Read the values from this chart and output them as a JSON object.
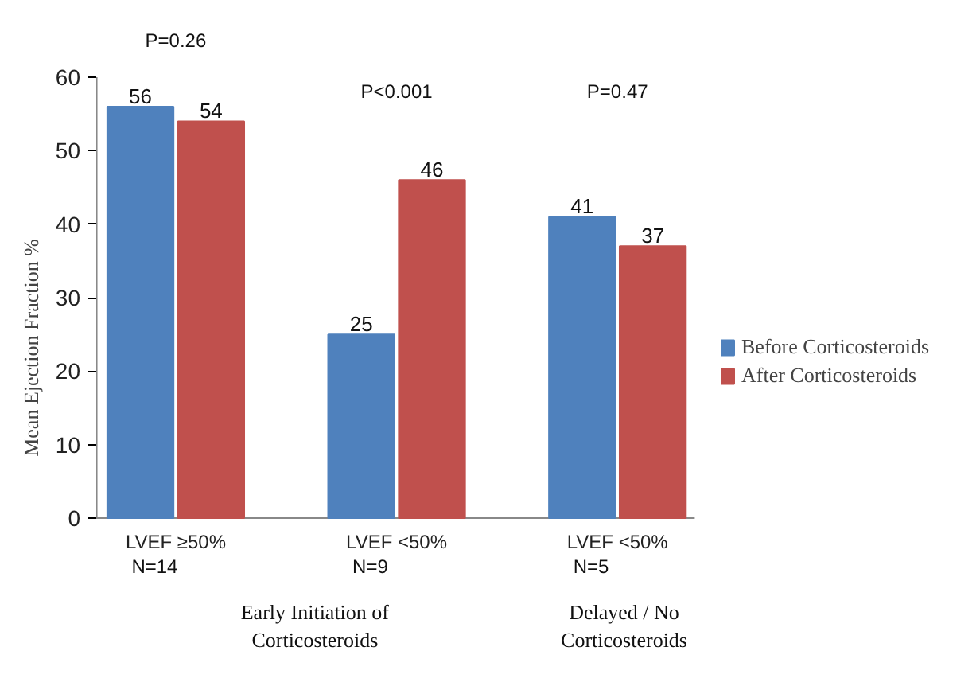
{
  "chart_data": {
    "type": "bar",
    "ylabel": "Mean Ejection Fraction %",
    "categories": [
      "LVEF ≥50%",
      "LVEF <50%",
      "LVEF <50%"
    ],
    "series": [
      {
        "name": "Before Corticosteroids",
        "color": "#4f81bd",
        "values": [
          56,
          25,
          41
        ]
      },
      {
        "name": "After Corticosteroids",
        "color": "#c0504d",
        "values": [
          54,
          46,
          37
        ]
      }
    ],
    "ylim": [
      0,
      60
    ],
    "yticks": [
      0,
      10,
      20,
      30,
      40,
      50,
      60
    ],
    "data_labels": true,
    "legend": "right",
    "grid": false,
    "annotations": [
      "P=0.26",
      "P<0.001",
      "P=0.47",
      "N=14",
      "N=9",
      "N=5",
      "Early Initiation of Corticosteroids",
      "Delayed / No Corticosteroids"
    ]
  }
}
